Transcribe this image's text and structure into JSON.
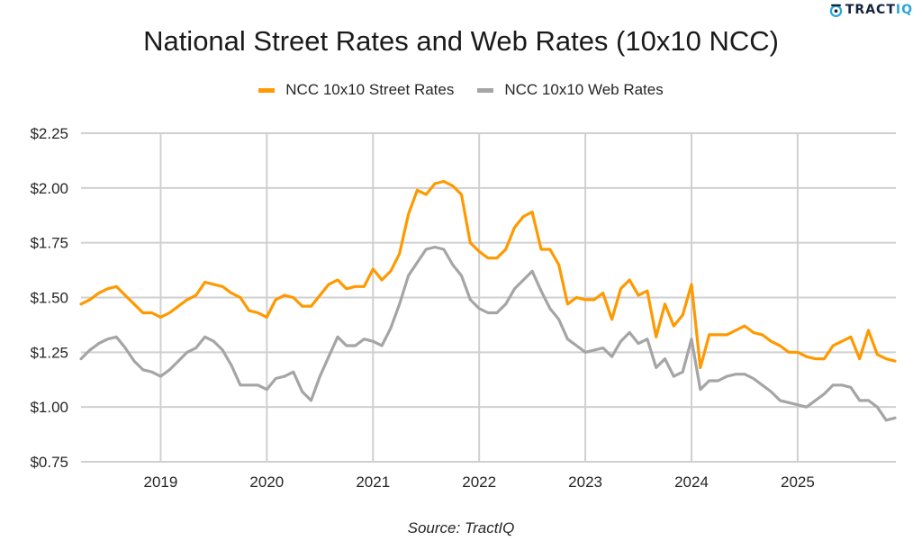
{
  "brand": {
    "logo_part1": "TRACT",
    "logo_part2": "IQ",
    "logo_icon": "tractiq-logo-icon",
    "colors": {
      "dark": "#14233c",
      "accent": "#2ba6d9"
    }
  },
  "source": "Source: TractIQ",
  "chart_data": {
    "type": "line",
    "title": "National Street Rates and Web Rates (10x10 NCC)",
    "xlabel": "",
    "ylabel": "",
    "x_start": "2018-04",
    "x_end": "2025-12",
    "x_frequency": "monthly",
    "x_ticks": [
      "2019",
      "2020",
      "2021",
      "2022",
      "2023",
      "2024",
      "2025"
    ],
    "y_ticks": [
      "$0.75",
      "$1.00",
      "$1.25",
      "$1.50",
      "$1.75",
      "$2.00",
      "$2.25"
    ],
    "y_tick_values": [
      0.75,
      1.0,
      1.25,
      1.5,
      1.75,
      2.0,
      2.25
    ],
    "ylim": [
      0.75,
      2.25
    ],
    "grid": true,
    "legend_position": "top-center",
    "series": [
      {
        "name": "NCC 10x10 Street Rates",
        "color": "#ff9900",
        "values": [
          1.47,
          1.49,
          1.52,
          1.54,
          1.55,
          1.51,
          1.47,
          1.43,
          1.43,
          1.41,
          1.43,
          1.46,
          1.49,
          1.51,
          1.57,
          1.56,
          1.55,
          1.52,
          1.5,
          1.44,
          1.43,
          1.41,
          1.49,
          1.51,
          1.5,
          1.46,
          1.46,
          1.51,
          1.56,
          1.58,
          1.54,
          1.55,
          1.55,
          1.63,
          1.58,
          1.62,
          1.7,
          1.88,
          1.99,
          1.97,
          2.02,
          2.03,
          2.01,
          1.97,
          1.75,
          1.71,
          1.68,
          1.68,
          1.72,
          1.82,
          1.87,
          1.89,
          1.72,
          1.72,
          1.65,
          1.47,
          1.5,
          1.49,
          1.49,
          1.52,
          1.4,
          1.54,
          1.58,
          1.51,
          1.53,
          1.32,
          1.47,
          1.37,
          1.42,
          1.56,
          1.18,
          1.33,
          1.33,
          1.33,
          1.35,
          1.37,
          1.34,
          1.33,
          1.3,
          1.28,
          1.25,
          1.25,
          1.23,
          1.22,
          1.22,
          1.28,
          1.3,
          1.32,
          1.22,
          1.35,
          1.24,
          1.22,
          1.21
        ]
      },
      {
        "name": "NCC 10x10 Web Rates",
        "color": "#a5a5a5",
        "values": [
          1.22,
          1.26,
          1.29,
          1.31,
          1.32,
          1.27,
          1.21,
          1.17,
          1.16,
          1.14,
          1.17,
          1.21,
          1.25,
          1.27,
          1.32,
          1.3,
          1.26,
          1.19,
          1.1,
          1.1,
          1.1,
          1.08,
          1.13,
          1.14,
          1.16,
          1.07,
          1.03,
          1.14,
          1.23,
          1.32,
          1.28,
          1.28,
          1.31,
          1.3,
          1.28,
          1.36,
          1.47,
          1.6,
          1.66,
          1.72,
          1.73,
          1.72,
          1.65,
          1.6,
          1.49,
          1.45,
          1.43,
          1.43,
          1.47,
          1.54,
          1.58,
          1.62,
          1.53,
          1.45,
          1.4,
          1.31,
          1.28,
          1.25,
          1.26,
          1.27,
          1.23,
          1.3,
          1.34,
          1.29,
          1.31,
          1.18,
          1.22,
          1.14,
          1.16,
          1.31,
          1.08,
          1.12,
          1.12,
          1.14,
          1.15,
          1.15,
          1.13,
          1.1,
          1.07,
          1.03,
          1.02,
          1.01,
          1.0,
          1.03,
          1.06,
          1.1,
          1.1,
          1.09,
          1.03,
          1.03,
          1.0,
          0.94,
          0.95
        ]
      }
    ]
  }
}
